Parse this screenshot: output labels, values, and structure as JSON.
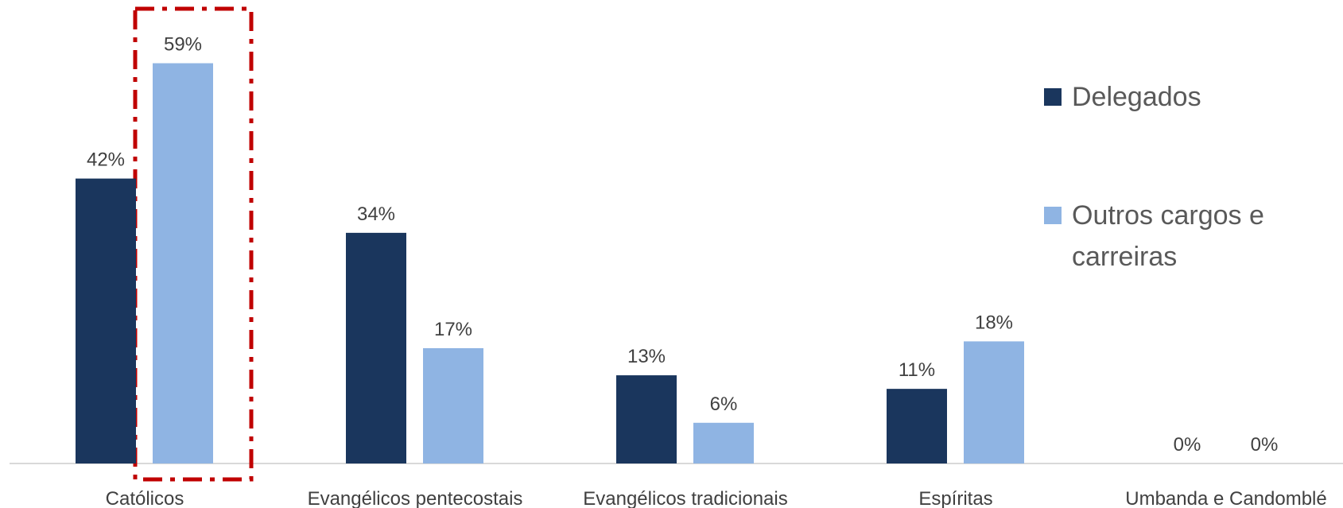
{
  "chart_data": {
    "type": "bar",
    "categories": [
      "Católicos",
      "Evangélicos pentecostais",
      "Evangélicos tradicionais",
      "Espíritas",
      "Umbanda e Candomblé"
    ],
    "series": [
      {
        "name": "Delegados",
        "color": "#1a365d",
        "values": [
          42,
          34,
          13,
          11,
          0
        ]
      },
      {
        "name": "Outros cargos e carreiras",
        "color": "#8fb4e3",
        "values": [
          59,
          17,
          6,
          18,
          0
        ]
      }
    ],
    "ylim": [
      0,
      60
    ],
    "legend": "right"
  }
}
